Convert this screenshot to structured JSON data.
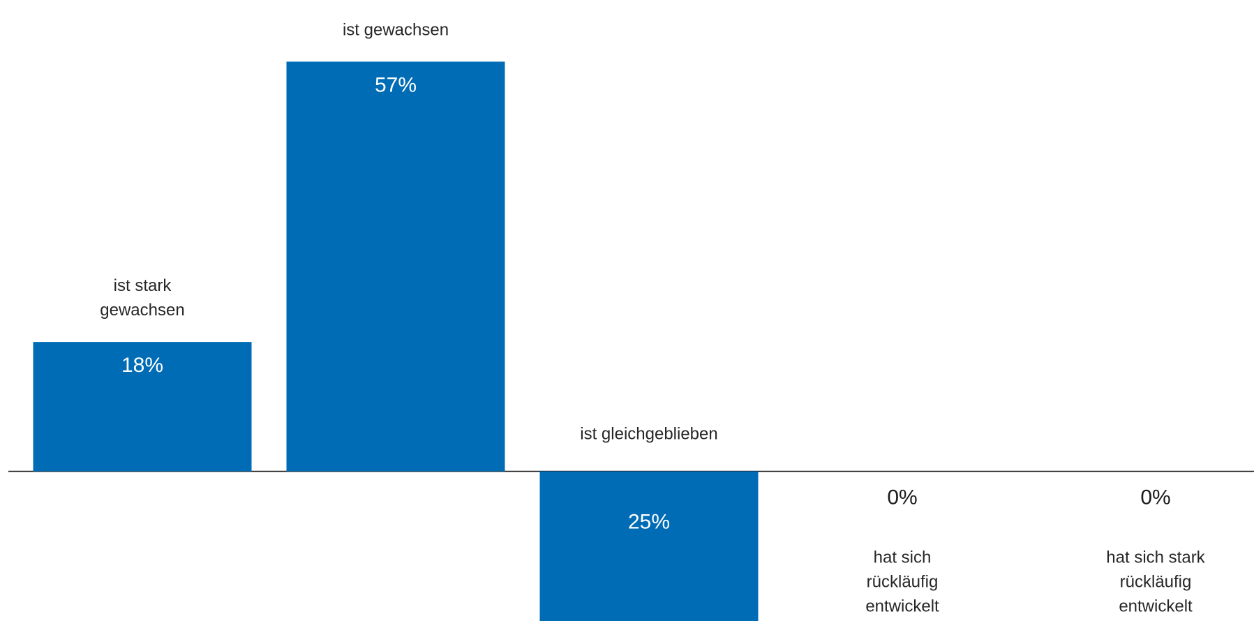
{
  "colors": {
    "bar": "#006cb5",
    "text": "#262626",
    "value_inside": "#ffffff",
    "baseline": "#1a1a1a"
  },
  "chart_data": {
    "type": "bar",
    "categories": [
      "ist stark gewachsen",
      "ist gewachsen",
      "ist gleichgeblieben",
      "hat sich rückläufig entwickelt",
      "hat sich stark rückläufig entwickelt"
    ],
    "category_lines": [
      [
        "ist stark",
        "gewachsen"
      ],
      [
        "ist gewachsen"
      ],
      [
        "ist gleichgeblieben"
      ],
      [
        "hat sich",
        "rückläufig",
        "entwickelt"
      ],
      [
        "hat sich stark",
        "rückläufig",
        "entwickelt"
      ]
    ],
    "values": [
      18,
      57,
      25,
      0,
      0
    ],
    "direction": [
      1,
      1,
      -1,
      -1,
      -1
    ],
    "value_labels": [
      "18%",
      "57%",
      "25%",
      "0%",
      "0%"
    ],
    "unit": "%",
    "grid": false,
    "legend": "none"
  }
}
